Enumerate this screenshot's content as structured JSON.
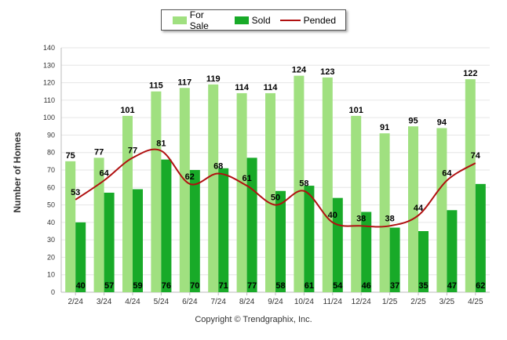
{
  "legend": {
    "items": [
      {
        "label": "For Sale",
        "color": "#a0e080"
      },
      {
        "label": "Sold",
        "color": "#18aa28"
      },
      {
        "label": "Pended",
        "color": "#b01010"
      }
    ]
  },
  "copyright": "Copyright © Trendgraphix, Inc.",
  "chart_data": {
    "type": "bar",
    "ylabel": "Number of Homes",
    "xlabel": "",
    "ylim": [
      0,
      140
    ],
    "ytick_step": 10,
    "grid": true,
    "legend_position": "top-center",
    "categories": [
      "2/24",
      "3/24",
      "4/24",
      "5/24",
      "6/24",
      "7/24",
      "8/24",
      "9/24",
      "10/24",
      "11/24",
      "12/24",
      "1/25",
      "2/25",
      "3/25",
      "4/25"
    ],
    "series": [
      {
        "name": "For Sale",
        "type": "bar",
        "color": "#a0e080",
        "values": [
          75,
          77,
          101,
          115,
          117,
          119,
          114,
          114,
          124,
          123,
          101,
          91,
          95,
          94,
          122
        ]
      },
      {
        "name": "Sold",
        "type": "bar",
        "color": "#18aa28",
        "values": [
          40,
          57,
          59,
          76,
          70,
          71,
          77,
          58,
          61,
          54,
          46,
          37,
          35,
          47,
          62
        ]
      },
      {
        "name": "Pended",
        "type": "line",
        "color": "#b01010",
        "values": [
          53,
          64,
          77,
          81,
          62,
          68,
          61,
          50,
          58,
          40,
          38,
          38,
          44,
          64,
          74
        ]
      }
    ]
  }
}
